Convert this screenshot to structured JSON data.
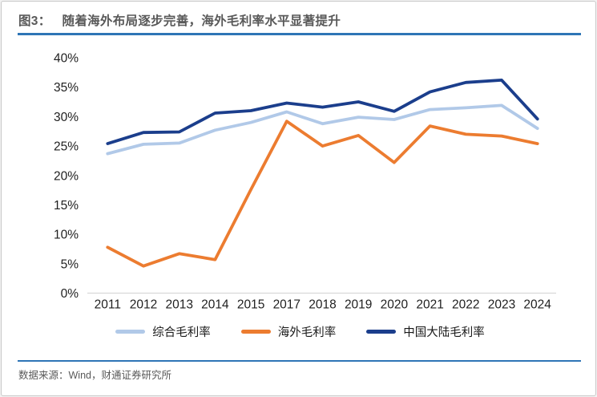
{
  "header": {
    "figure_label": "图3：",
    "title": "随着海外布局逐步完善，海外毛利率水平显著提升"
  },
  "footer": {
    "source": "数据来源：Wind，财通证券研究所"
  },
  "colors": {
    "accent_rule": "#2e75b6",
    "axis_line": "#d9d9d9",
    "tick_text": "#1f1f1f",
    "title_text": "#595959"
  },
  "chart_data": {
    "type": "line",
    "title": "",
    "xlabel": "",
    "ylabel": "",
    "categories": [
      "2011",
      "2012",
      "2013",
      "2014",
      "2015",
      "2017",
      "2018",
      "2019",
      "2020",
      "2021",
      "2022",
      "2023",
      "2024"
    ],
    "series": [
      {
        "name": "综合毛利率",
        "color": "#b1c9e8",
        "values": [
          23.7,
          25.3,
          25.5,
          27.7,
          29.0,
          30.8,
          28.8,
          29.9,
          29.5,
          31.2,
          31.5,
          31.9,
          28.0
        ]
      },
      {
        "name": "海外毛利率",
        "color": "#ec7c30",
        "values": [
          7.8,
          4.6,
          6.7,
          5.7,
          17.6,
          29.2,
          25.0,
          26.8,
          22.2,
          28.4,
          27.0,
          26.7,
          25.4
        ]
      },
      {
        "name": "中国大陆毛利率",
        "color": "#1b3e8c",
        "values": [
          25.4,
          27.3,
          27.4,
          30.6,
          31.0,
          32.3,
          31.6,
          32.5,
          30.9,
          34.2,
          35.8,
          36.2,
          29.6
        ]
      }
    ],
    "ylim": [
      0,
      40
    ],
    "ytick_step": 5,
    "ytick_format": "percent",
    "grid": false,
    "legend_position": "bottom"
  }
}
